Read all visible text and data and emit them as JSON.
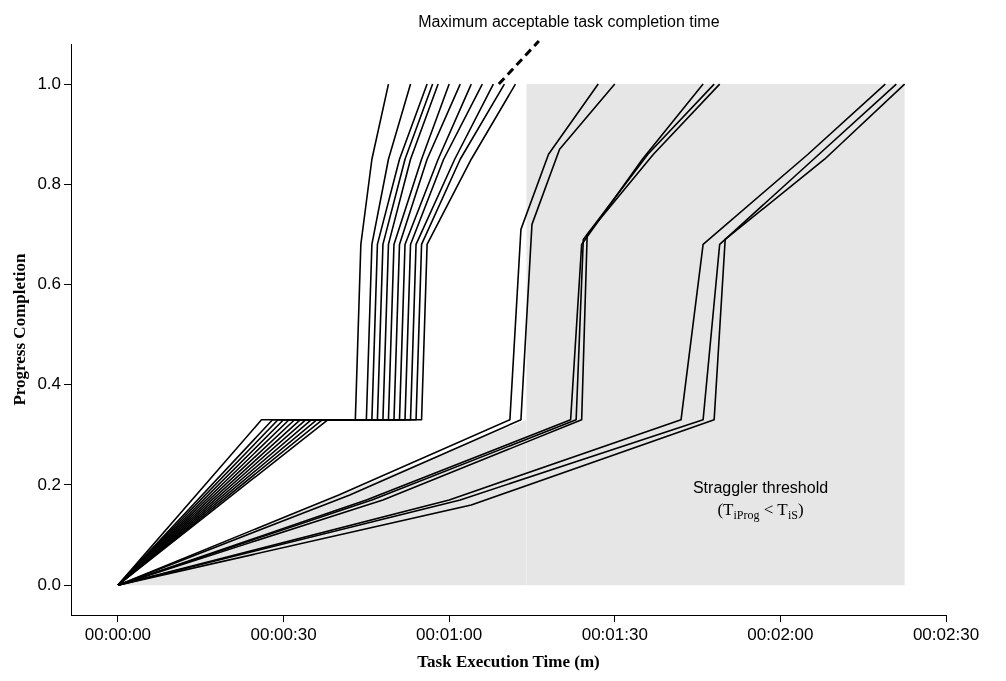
{
  "chart_data": {
    "type": "line",
    "xlabel": "Task Execution Time (m)",
    "ylabel": "Progress Completion",
    "xlim": [
      -8.5,
      150
    ],
    "ylim": [
      -0.06,
      1.08
    ],
    "xticks": [
      {
        "value": 0,
        "label": "00:00:00"
      },
      {
        "value": 30,
        "label": "00:00:30"
      },
      {
        "value": 60,
        "label": "00:01:00"
      },
      {
        "value": 90,
        "label": "00:01:30"
      },
      {
        "value": 120,
        "label": "00:02:00"
      },
      {
        "value": 150,
        "label": "00:02:30"
      }
    ],
    "yticks": [
      {
        "value": 0,
        "label": "0.0"
      },
      {
        "value": 0.2,
        "label": "0.2"
      },
      {
        "value": 0.4,
        "label": "0.4"
      },
      {
        "value": 0.6,
        "label": "0.6"
      },
      {
        "value": 0.8,
        "label": "0.8"
      },
      {
        "value": 1,
        "label": "1.0"
      }
    ],
    "grid": false,
    "legend": false,
    "marker": "none",
    "line_style": "solid",
    "bands": [
      {
        "axis": "x",
        "from": 74,
        "to": 142.5,
        "label": "Straggler threshold\n(T$_{iProg}$ < T$_{iS}$)",
        "color": "#e6e6e6"
      }
    ],
    "annotations": [
      {
        "text": "Maximum acceptable task completion time",
        "x": 69,
        "y": 1.0
      }
    ],
    "series": [
      {
        "type": "area",
        "color": "#e6e6e6",
        "x": [
          0,
          74
        ],
        "values": [
          0,
          0.33
        ]
      },
      {
        "color": "#000000",
        "x": [
          0,
          26,
          43,
          44,
          46,
          49
        ],
        "values": [
          0,
          0.33,
          0.33,
          0.68,
          0.85,
          1
        ]
      },
      {
        "color": "#000000",
        "x": [
          0,
          28,
          45,
          46,
          49,
          53
        ],
        "values": [
          0,
          0.33,
          0.33,
          0.68,
          0.85,
          1
        ]
      },
      {
        "color": "#000000",
        "x": [
          0,
          29,
          47,
          48,
          52,
          57
        ],
        "values": [
          0,
          0.33,
          0.33,
          0.68,
          0.85,
          1
        ]
      },
      {
        "color": "#000000",
        "x": [
          0,
          30,
          46,
          47,
          51,
          56
        ],
        "values": [
          0,
          0.33,
          0.33,
          0.68,
          0.85,
          1
        ]
      },
      {
        "color": "#000000",
        "x": [
          0,
          31,
          48,
          49,
          53,
          58
        ],
        "values": [
          0,
          0.33,
          0.33,
          0.68,
          0.85,
          1
        ]
      },
      {
        "color": "#000000",
        "x": [
          0,
          32,
          49,
          50,
          55,
          60
        ],
        "values": [
          0,
          0.33,
          0.33,
          0.68,
          0.85,
          1
        ]
      },
      {
        "color": "#000000",
        "x": [
          0,
          33,
          50,
          51,
          56,
          62
        ],
        "values": [
          0,
          0.33,
          0.33,
          0.68,
          0.85,
          1
        ]
      },
      {
        "color": "#000000",
        "x": [
          0,
          34,
          51,
          52,
          58,
          64
        ],
        "values": [
          0,
          0.33,
          0.33,
          0.68,
          0.85,
          1
        ]
      },
      {
        "color": "#000000",
        "x": [
          0,
          35,
          52,
          53,
          59,
          66
        ],
        "values": [
          0,
          0.33,
          0.33,
          0.68,
          0.85,
          1
        ]
      },
      {
        "color": "#000000",
        "x": [
          0,
          36,
          53,
          54,
          61,
          68
        ],
        "values": [
          0,
          0.33,
          0.33,
          0.68,
          0.85,
          1
        ]
      },
      {
        "color": "#000000",
        "x": [
          0,
          37,
          54,
          55,
          62,
          70
        ],
        "values": [
          0,
          0.33,
          0.33,
          0.68,
          0.85,
          1
        ]
      },
      {
        "color": "#000000",
        "x": [
          0,
          38,
          55,
          56,
          64,
          72
        ],
        "values": [
          0,
          0.33,
          0.33,
          0.68,
          0.85,
          1
        ]
      },
      {
        "color": "#000000",
        "x": [
          0,
          40,
          71,
          73,
          78,
          87
        ],
        "values": [
          0,
          0.18,
          0.33,
          0.71,
          0.86,
          1
        ]
      },
      {
        "color": "#000000",
        "x": [
          0,
          42,
          73,
          75,
          80,
          90
        ],
        "values": [
          0,
          0.18,
          0.33,
          0.72,
          0.87,
          1
        ]
      },
      {
        "color": "#000000",
        "x": [
          0,
          45,
          82,
          84,
          95,
          106
        ],
        "values": [
          0,
          0.17,
          0.33,
          0.68,
          0.85,
          1
        ]
      },
      {
        "color": "#000000",
        "x": [
          0,
          46,
          83,
          84.3,
          96,
          108
        ],
        "values": [
          0,
          0.17,
          0.33,
          0.69,
          0.86,
          1
        ]
      },
      {
        "color": "#000000",
        "x": [
          0,
          48,
          84,
          85,
          97,
          109
        ],
        "values": [
          0,
          0.17,
          0.33,
          0.7,
          0.86,
          1
        ]
      },
      {
        "color": "#000000",
        "x": [
          0,
          60,
          102,
          106,
          125,
          139
        ],
        "values": [
          0,
          0.17,
          0.33,
          0.68,
          0.86,
          1
        ]
      },
      {
        "color": "#000000",
        "x": [
          0,
          62,
          106,
          109,
          126,
          141
        ],
        "values": [
          0,
          0.17,
          0.33,
          0.68,
          0.85,
          1
        ]
      },
      {
        "color": "#000000",
        "x": [
          0,
          64,
          108,
          110,
          128,
          142.5
        ],
        "values": [
          0,
          0.16,
          0.33,
          0.69,
          0.85,
          1
        ]
      }
    ]
  }
}
